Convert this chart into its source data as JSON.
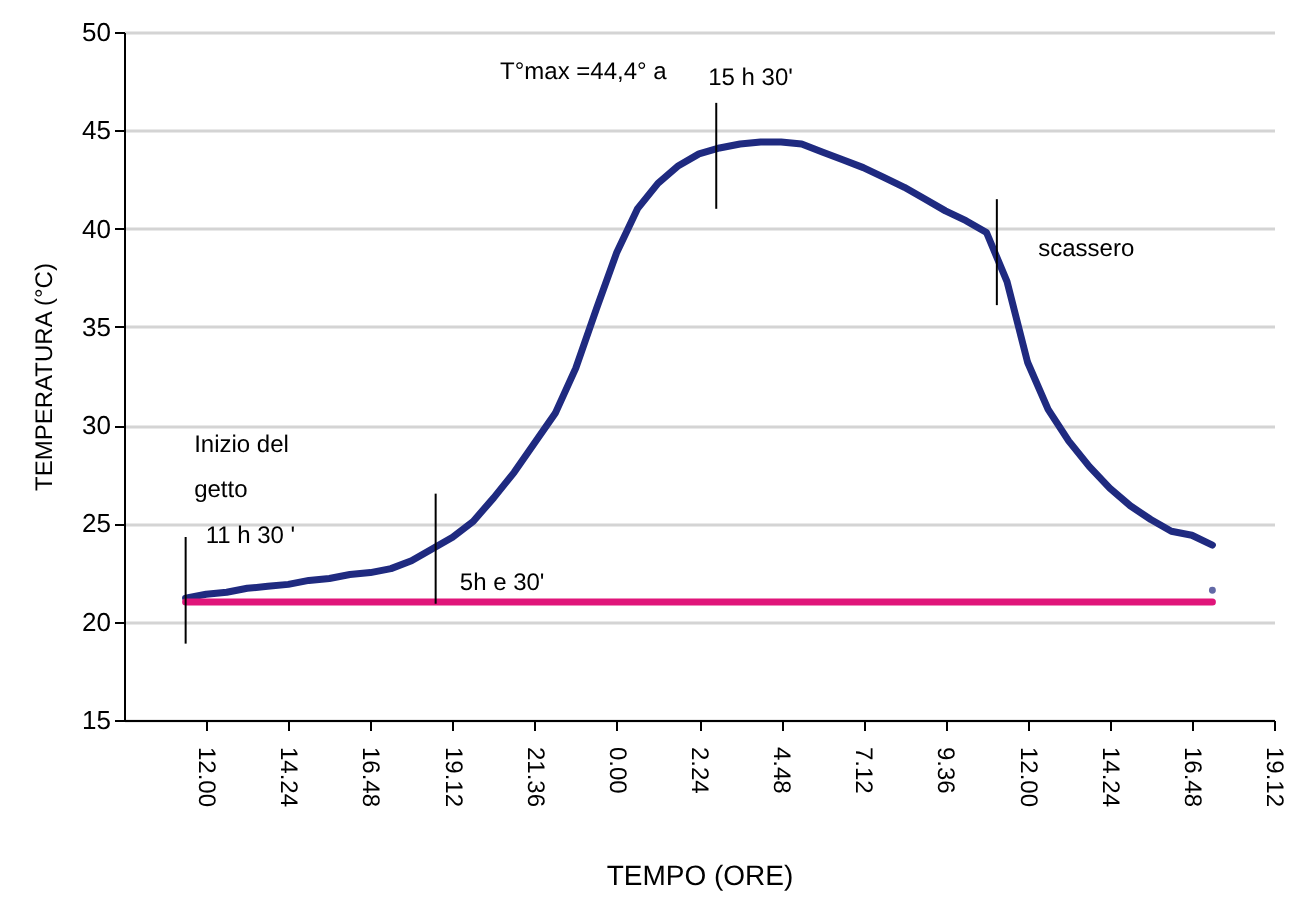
{
  "chart_data": {
    "type": "line",
    "xlabel": "TEMPO  (ORE)",
    "ylabel": "TEMPERATURA (°C)",
    "categories": [
      null,
      null,
      null,
      null,
      "12.00",
      null,
      null,
      null,
      "14.24",
      null,
      null,
      null,
      "16.48",
      null,
      null,
      null,
      "19.12",
      null,
      null,
      null,
      "21.36",
      null,
      null,
      null,
      "0.00",
      null,
      null,
      null,
      "2.24",
      null,
      null,
      null,
      "4.48",
      null,
      null,
      null,
      "7.12",
      null,
      null,
      null,
      "9.36",
      null,
      null,
      null,
      "12.00",
      null,
      null,
      null,
      "14.24",
      null,
      null,
      null,
      "16.48",
      null,
      null,
      null,
      "19.12"
    ],
    "ylim": [
      15,
      50
    ],
    "yticks": [
      15,
      20,
      25,
      30,
      35,
      40,
      45,
      50
    ],
    "grid": "y",
    "series": [
      {
        "color": "#1f2a80",
        "values": [
          null,
          null,
          null,
          21.2,
          21.4,
          21.5,
          21.7,
          21.8,
          21.9,
          22.1,
          22.2,
          22.4,
          22.5,
          22.7,
          23.1,
          23.7,
          24.3,
          25.1,
          26.3,
          27.6,
          29.1,
          30.6,
          32.9,
          35.9,
          38.8,
          41.0,
          42.3,
          43.2,
          43.8,
          44.1,
          44.3,
          44.4,
          44.4,
          44.3,
          43.9,
          43.5,
          43.1,
          42.6,
          42.1,
          41.5,
          40.9,
          40.4,
          39.8,
          37.3,
          33.2,
          30.8,
          29.2,
          27.9,
          26.8,
          25.9,
          25.2,
          24.6,
          24.4,
          23.9,
          null,
          null,
          null
        ]
      },
      {
        "color": "#e0157a",
        "values": [
          null,
          null,
          null,
          21,
          21,
          21,
          21,
          21,
          21,
          21,
          21,
          21,
          21,
          21,
          21,
          21,
          21,
          21,
          21,
          21,
          21,
          21,
          21,
          21,
          21,
          21,
          21,
          21,
          21,
          21,
          21,
          21,
          21,
          21,
          21,
          21,
          21,
          21,
          21,
          21,
          21,
          21,
          21,
          21,
          21,
          21,
          21,
          21,
          21,
          21,
          21,
          21,
          21,
          21,
          null,
          null,
          null
        ]
      },
      {
        "type": "scatter",
        "color": "#1f2a80",
        "marker": "circle",
        "values": [
          null,
          null,
          null,
          null,
          null,
          null,
          null,
          null,
          null,
          null,
          null,
          null,
          null,
          null,
          null,
          null,
          null,
          null,
          null,
          null,
          null,
          null,
          null,
          null,
          null,
          null,
          null,
          null,
          null,
          null,
          null,
          null,
          null,
          null,
          null,
          null,
          null,
          null,
          null,
          null,
          null,
          null,
          null,
          null,
          null,
          null,
          null,
          null,
          null,
          null,
          null,
          null,
          null,
          21.6,
          null,
          null,
          null
        ]
      }
    ],
    "annotations": [
      "T°max =44,4° a",
      "15 h 30'",
      "scassero",
      "Inizio del",
      "getto",
      "11 h  30 '",
      "5h e 30'"
    ]
  }
}
